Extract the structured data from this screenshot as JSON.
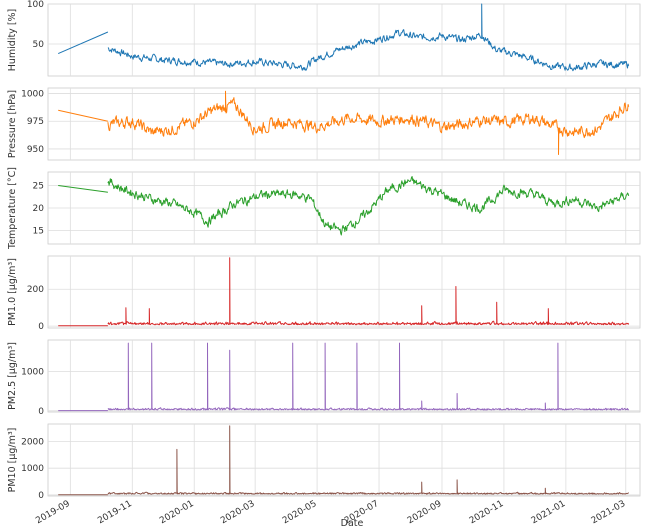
{
  "chart_data": {
    "type": "line",
    "xlabel": "Date",
    "x_ticks": [
      "2019-09",
      "2019-11",
      "2020-01",
      "2020-03",
      "2020-05",
      "2020-07",
      "2020-09",
      "2020-11",
      "2021-01",
      "2021-03"
    ],
    "x_range": [
      "2019-08-10",
      "2021-03-15"
    ],
    "panels": [
      {
        "name": "humidity",
        "ylabel": "Humidity [%]",
        "color": "#1f77b4",
        "ylim": [
          10,
          100
        ],
        "y_ticks": [
          50,
          100
        ],
        "segments": [
          {
            "x": [
              "2019-08-20",
              "2019-10-08"
            ],
            "y": [
              38,
              65
            ]
          },
          {
            "x": [
              "2019-10-08",
              "2019-11-01",
              "2019-12-01",
              "2020-01-01",
              "2020-02-01",
              "2020-03-01",
              "2020-04-01",
              "2020-04-20",
              "2020-05-01",
              "2020-05-20",
              "2020-06-10",
              "2020-07-01",
              "2020-07-20",
              "2020-08-10",
              "2020-09-01",
              "2020-09-20",
              "2020-10-10",
              "2020-10-25",
              "2020-11-10",
              "2020-12-01",
              "2020-12-20",
              "2021-01-10",
              "2021-02-01",
              "2021-03-04"
            ],
            "y": [
              45,
              35,
              30,
              28,
              25,
              28,
              24,
              22,
              32,
              42,
              50,
              56,
              64,
              58,
              60,
              55,
              62,
              42,
              38,
              30,
              22,
              20,
              25,
              24
            ],
            "noise": 6,
            "spikes": [
              {
                "x": "2020-10-10",
                "y": 100
              }
            ]
          }
        ]
      },
      {
        "name": "pressure",
        "ylabel": "Pressure [hPa]",
        "color": "#ff7f0e",
        "ylim": [
          940,
          1005
        ],
        "y_ticks": [
          950,
          975,
          1000
        ],
        "segments": [
          {
            "x": [
              "2019-08-20",
              "2019-10-08"
            ],
            "y": [
              985,
              975
            ]
          },
          {
            "x": [
              "2019-10-08",
              "2019-11-01",
              "2019-11-20",
              "2019-12-10",
              "2020-01-01",
              "2020-01-20",
              "2020-02-10",
              "2020-03-01",
              "2020-04-01",
              "2020-05-01",
              "2020-06-01",
              "2020-07-01",
              "2020-08-01",
              "2020-09-01",
              "2020-09-20",
              "2020-10-10",
              "2020-11-01",
              "2020-12-01",
              "2020-12-20",
              "2021-01-10",
              "2021-02-01",
              "2021-03-04"
            ],
            "y": [
              972,
              975,
              965,
              968,
              975,
              985,
              990,
              968,
              975,
              970,
              978,
              975,
              978,
              970,
              972,
              976,
              974,
              978,
              970,
              965,
              968,
              992
            ],
            "noise": 7,
            "spikes": [
              {
                "x": "2020-02-01",
                "y": 1002
              },
              {
                "x": "2020-12-25",
                "y": 945
              }
            ]
          }
        ]
      },
      {
        "name": "temperature",
        "ylabel": "Temperature [°C]",
        "color": "#2ca02c",
        "ylim": [
          12,
          28
        ],
        "y_ticks": [
          15,
          20,
          25
        ],
        "segments": [
          {
            "x": [
              "2019-08-20",
              "2019-10-08"
            ],
            "y": [
              25,
              23.5
            ]
          },
          {
            "x": [
              "2019-10-08",
              "2019-10-25",
              "2019-11-20",
              "2019-12-10",
              "2020-01-01",
              "2020-01-15",
              "2020-02-10",
              "2020-03-10",
              "2020-04-10",
              "2020-04-25",
              "2020-05-10",
              "2020-05-25",
              "2020-06-15",
              "2020-07-10",
              "2020-08-01",
              "2020-09-01",
              "2020-09-20",
              "2020-10-10",
              "2020-11-01",
              "2020-12-01",
              "2020-12-20",
              "2021-01-10",
              "2021-02-01",
              "2021-03-04"
            ],
            "y": [
              26,
              24,
              22,
              21,
              19,
              17,
              21,
              23,
              23,
              22,
              16,
              15,
              18,
              24,
              26,
              23,
              21,
              20,
              24,
              23,
              21,
              22,
              20,
              23
            ],
            "noise": 1.4,
            "spikes": []
          }
        ]
      },
      {
        "name": "pm1",
        "ylabel": "PM1.0 [μg/m³]",
        "color": "#d62728",
        "ylim": [
          -10,
          380
        ],
        "y_ticks": [
          0,
          200
        ],
        "segments": [
          {
            "x": [
              "2019-08-20",
              "2019-10-08"
            ],
            "y": [
              2,
              2
            ]
          },
          {
            "x": [
              "2019-10-08",
              "2021-03-04"
            ],
            "y": [
              10,
              10
            ],
            "noise": 12,
            "spikes": [
              {
                "x": "2019-10-26",
                "y": 100
              },
              {
                "x": "2019-11-18",
                "y": 95
              },
              {
                "x": "2020-02-05",
                "y": 370
              },
              {
                "x": "2020-08-12",
                "y": 110
              },
              {
                "x": "2020-09-15",
                "y": 215
              },
              {
                "x": "2020-10-25",
                "y": 130
              },
              {
                "x": "2020-12-15",
                "y": 95
              }
            ]
          }
        ]
      },
      {
        "name": "pm25",
        "ylabel": "PM2.5 [μg/m³]",
        "color": "#9467bd",
        "ylim": [
          -30,
          1800
        ],
        "y_ticks": [
          0,
          1000
        ],
        "segments": [
          {
            "x": [
              "2019-08-20",
              "2019-10-08"
            ],
            "y": [
              5,
              5
            ]
          },
          {
            "x": [
              "2019-10-08",
              "2021-03-04"
            ],
            "y": [
              30,
              30
            ],
            "noise": 40,
            "spikes": [
              {
                "x": "2019-10-28",
                "y": 1720
              },
              {
                "x": "2019-11-20",
                "y": 1720
              },
              {
                "x": "2020-01-14",
                "y": 1720
              },
              {
                "x": "2020-02-05",
                "y": 1540
              },
              {
                "x": "2020-04-07",
                "y": 1720
              },
              {
                "x": "2020-05-09",
                "y": 1720
              },
              {
                "x": "2020-06-09",
                "y": 1720
              },
              {
                "x": "2020-07-21",
                "y": 1720
              },
              {
                "x": "2020-08-12",
                "y": 250
              },
              {
                "x": "2020-09-16",
                "y": 440
              },
              {
                "x": "2020-12-12",
                "y": 200
              },
              {
                "x": "2020-12-24",
                "y": 1720
              }
            ]
          }
        ]
      },
      {
        "name": "pm10",
        "ylabel": "PM10 [μg/m³]",
        "color": "#8c564b",
        "ylim": [
          -40,
          2650
        ],
        "y_ticks": [
          0,
          1000,
          2000
        ],
        "segments": [
          {
            "x": [
              "2019-08-20",
              "2019-10-08"
            ],
            "y": [
              5,
              5
            ]
          },
          {
            "x": [
              "2019-10-08",
              "2021-03-04"
            ],
            "y": [
              40,
              40
            ],
            "noise": 50,
            "spikes": [
              {
                "x": "2019-12-15",
                "y": 1700
              },
              {
                "x": "2020-02-05",
                "y": 2580
              },
              {
                "x": "2020-08-12",
                "y": 480
              },
              {
                "x": "2020-09-16",
                "y": 560
              },
              {
                "x": "2020-12-12",
                "y": 250
              }
            ]
          }
        ]
      }
    ]
  }
}
